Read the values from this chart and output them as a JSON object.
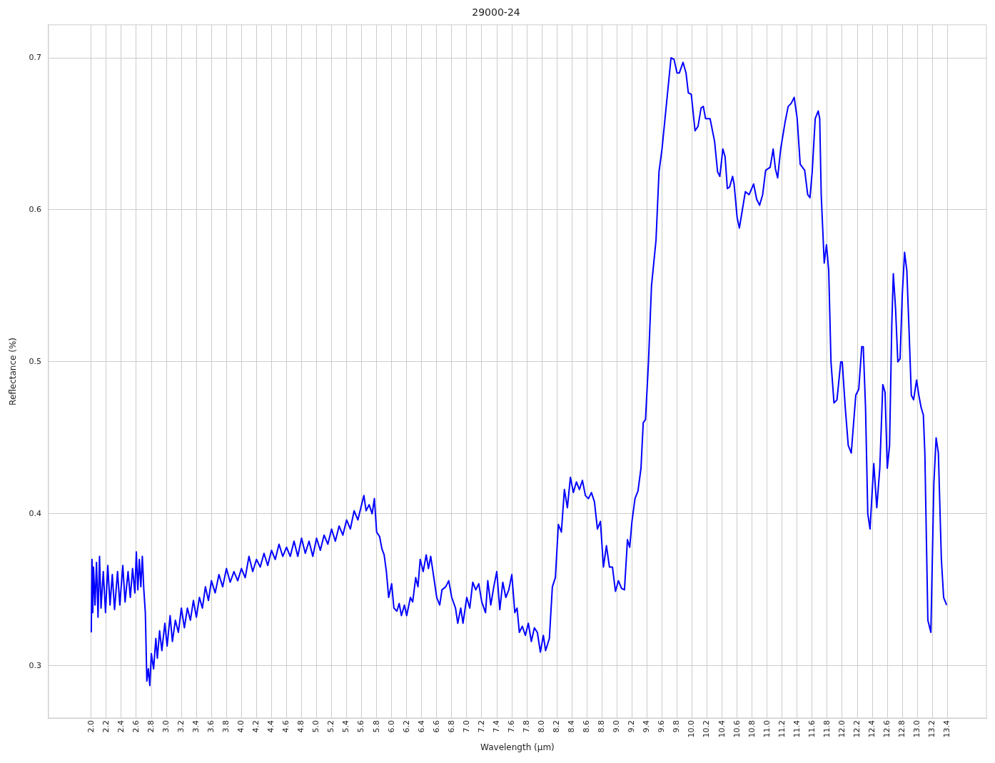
{
  "chart_data": {
    "type": "line",
    "title": "29000-24",
    "xlabel": "Wavelength (µm)",
    "ylabel": "Reflectance (%)",
    "xlim": [
      1.43,
      13.92
    ],
    "ylim": [
      0.2656,
      0.7217
    ],
    "xticks": [
      {
        "value": 2,
        "label": "2.0"
      },
      {
        "value": 2.2,
        "label": "2.2"
      },
      {
        "value": 2.4,
        "label": "2.4"
      },
      {
        "value": 2.6,
        "label": "2.6"
      },
      {
        "value": 2.8,
        "label": "2.8"
      },
      {
        "value": 3,
        "label": "3.0"
      },
      {
        "value": 3.2,
        "label": "3.2"
      },
      {
        "value": 3.4,
        "label": "3.4"
      },
      {
        "value": 3.6,
        "label": "3.6"
      },
      {
        "value": 3.8,
        "label": "3.8"
      },
      {
        "value": 4,
        "label": "4.0"
      },
      {
        "value": 4.2,
        "label": "4.2"
      },
      {
        "value": 4.4,
        "label": "4.4"
      },
      {
        "value": 4.6,
        "label": "4.6"
      },
      {
        "value": 4.8,
        "label": "4.8"
      },
      {
        "value": 5,
        "label": "5.0"
      },
      {
        "value": 5.2,
        "label": "5.2"
      },
      {
        "value": 5.4,
        "label": "5.4"
      },
      {
        "value": 5.6,
        "label": "5.6"
      },
      {
        "value": 5.8,
        "label": "5.8"
      },
      {
        "value": 6,
        "label": "6.0"
      },
      {
        "value": 6.2,
        "label": "6.2"
      },
      {
        "value": 6.4,
        "label": "6.4"
      },
      {
        "value": 6.6,
        "label": "6.6"
      },
      {
        "value": 6.8,
        "label": "6.8"
      },
      {
        "value": 7,
        "label": "7.0"
      },
      {
        "value": 7.2,
        "label": "7.2"
      },
      {
        "value": 7.4,
        "label": "7.4"
      },
      {
        "value": 7.6,
        "label": "7.6"
      },
      {
        "value": 7.8,
        "label": "7.8"
      },
      {
        "value": 8,
        "label": "8.0"
      },
      {
        "value": 8.2,
        "label": "8.2"
      },
      {
        "value": 8.4,
        "label": "8.4"
      },
      {
        "value": 8.6,
        "label": "8.6"
      },
      {
        "value": 8.8,
        "label": "8.8"
      },
      {
        "value": 9,
        "label": "9.0"
      },
      {
        "value": 9.2,
        "label": "9.2"
      },
      {
        "value": 9.4,
        "label": "9.4"
      },
      {
        "value": 9.6,
        "label": "9.6"
      },
      {
        "value": 9.8,
        "label": "9.8"
      },
      {
        "value": 10,
        "label": "10.0"
      },
      {
        "value": 10.2,
        "label": "10.2"
      },
      {
        "value": 10.4,
        "label": "10.4"
      },
      {
        "value": 10.6,
        "label": "10.6"
      },
      {
        "value": 10.8,
        "label": "10.8"
      },
      {
        "value": 11,
        "label": "11.0"
      },
      {
        "value": 11.2,
        "label": "11.2"
      },
      {
        "value": 11.4,
        "label": "11.4"
      },
      {
        "value": 11.6,
        "label": "11.6"
      },
      {
        "value": 11.8,
        "label": "11.8"
      },
      {
        "value": 12,
        "label": "12.0"
      },
      {
        "value": 12.2,
        "label": "12.2"
      },
      {
        "value": 12.4,
        "label": "12.4"
      },
      {
        "value": 12.6,
        "label": "12.6"
      },
      {
        "value": 12.8,
        "label": "12.8"
      },
      {
        "value": 13,
        "label": "13.0"
      },
      {
        "value": 13.2,
        "label": "13.2"
      },
      {
        "value": 13.4,
        "label": "13.4"
      }
    ],
    "yticks": [
      0.3,
      0.4,
      0.5,
      0.6,
      0.7
    ],
    "grid": true,
    "x": [
      2.0,
      2.01,
      2.02,
      2.03,
      2.05,
      2.07,
      2.09,
      2.11,
      2.13,
      2.16,
      2.19,
      2.22,
      2.25,
      2.28,
      2.31,
      2.35,
      2.38,
      2.42,
      2.45,
      2.49,
      2.52,
      2.55,
      2.58,
      2.6,
      2.62,
      2.64,
      2.66,
      2.68,
      2.7,
      2.72,
      2.74,
      2.76,
      2.78,
      2.8,
      2.83,
      2.86,
      2.88,
      2.91,
      2.94,
      2.98,
      3.01,
      3.05,
      3.08,
      3.12,
      3.16,
      3.2,
      3.24,
      3.28,
      3.32,
      3.36,
      3.4,
      3.44,
      3.48,
      3.52,
      3.56,
      3.6,
      3.65,
      3.7,
      3.75,
      3.8,
      3.85,
      3.9,
      3.95,
      4.0,
      4.05,
      4.1,
      4.15,
      4.2,
      4.25,
      4.3,
      4.35,
      4.4,
      4.45,
      4.5,
      4.55,
      4.6,
      4.65,
      4.7,
      4.75,
      4.8,
      4.85,
      4.9,
      4.95,
      5.0,
      5.05,
      5.1,
      5.15,
      5.2,
      5.25,
      5.3,
      5.35,
      5.4,
      5.45,
      5.5,
      5.55,
      5.6,
      5.63,
      5.66,
      5.7,
      5.74,
      5.77,
      5.8,
      5.84,
      5.87,
      5.9,
      5.93,
      5.96,
      6.0,
      6.03,
      6.07,
      6.1,
      6.13,
      6.17,
      6.2,
      6.25,
      6.28,
      6.32,
      6.35,
      6.38,
      6.42,
      6.46,
      6.49,
      6.52,
      6.55,
      6.6,
      6.64,
      6.67,
      6.72,
      6.76,
      6.8,
      6.85,
      6.88,
      6.92,
      6.95,
      7.0,
      7.04,
      7.08,
      7.12,
      7.16,
      7.2,
      7.25,
      7.28,
      7.32,
      7.36,
      7.4,
      7.44,
      7.48,
      7.52,
      7.56,
      7.6,
      7.64,
      7.67,
      7.7,
      7.74,
      7.78,
      7.82,
      7.86,
      7.9,
      7.94,
      7.98,
      8.02,
      8.05,
      8.1,
      8.14,
      8.18,
      8.22,
      8.26,
      8.3,
      8.34,
      8.38,
      8.42,
      8.46,
      8.5,
      8.54,
      8.58,
      8.62,
      8.66,
      8.7,
      8.74,
      8.78,
      8.82,
      8.86,
      8.9,
      8.94,
      8.98,
      9.02,
      9.06,
      9.1,
      9.14,
      9.17,
      9.2,
      9.24,
      9.28,
      9.32,
      9.35,
      9.38,
      9.42,
      9.46,
      9.52,
      9.56,
      9.6,
      9.66,
      9.72,
      9.76,
      9.8,
      9.83,
      9.88,
      9.92,
      9.95,
      9.99,
      10.04,
      10.08,
      10.12,
      10.15,
      10.18,
      10.24,
      10.3,
      10.34,
      10.37,
      10.41,
      10.44,
      10.47,
      10.5,
      10.54,
      10.56,
      10.6,
      10.63,
      10.67,
      10.71,
      10.76,
      10.82,
      10.86,
      10.9,
      10.94,
      10.98,
      11.04,
      11.08,
      11.11,
      11.14,
      11.18,
      11.24,
      11.28,
      11.32,
      11.36,
      11.4,
      11.44,
      11.5,
      11.54,
      11.57,
      11.6,
      11.64,
      11.68,
      11.7,
      11.72,
      11.76,
      11.79,
      11.82,
      11.85,
      11.89,
      11.93,
      11.98,
      12.0,
      12.04,
      12.08,
      12.12,
      12.18,
      12.22,
      12.26,
      12.28,
      12.31,
      12.34,
      12.37,
      12.42,
      12.46,
      12.5,
      12.54,
      12.57,
      12.6,
      12.63,
      12.66,
      12.68,
      12.71,
      12.74,
      12.77,
      12.8,
      12.83,
      12.86,
      12.89,
      12.92,
      12.95,
      12.99,
      13.02,
      13.05,
      13.08,
      13.1,
      13.14,
      13.18,
      13.22,
      13.25,
      13.28,
      13.32,
      13.35,
      13.39
    ],
    "series": [
      {
        "color": "#0000ff",
        "values": [
          0.322,
          0.37,
          0.335,
          0.365,
          0.34,
          0.368,
          0.332,
          0.372,
          0.338,
          0.362,
          0.335,
          0.366,
          0.34,
          0.36,
          0.337,
          0.362,
          0.34,
          0.366,
          0.342,
          0.362,
          0.345,
          0.364,
          0.348,
          0.375,
          0.35,
          0.37,
          0.352,
          0.372,
          0.35,
          0.335,
          0.29,
          0.298,
          0.287,
          0.308,
          0.298,
          0.318,
          0.305,
          0.323,
          0.31,
          0.328,
          0.313,
          0.333,
          0.316,
          0.33,
          0.322,
          0.338,
          0.325,
          0.338,
          0.33,
          0.343,
          0.332,
          0.345,
          0.338,
          0.352,
          0.343,
          0.356,
          0.348,
          0.36,
          0.352,
          0.364,
          0.355,
          0.362,
          0.356,
          0.364,
          0.358,
          0.372,
          0.362,
          0.37,
          0.365,
          0.374,
          0.366,
          0.376,
          0.37,
          0.38,
          0.372,
          0.378,
          0.372,
          0.382,
          0.372,
          0.384,
          0.374,
          0.382,
          0.372,
          0.384,
          0.376,
          0.386,
          0.38,
          0.39,
          0.382,
          0.392,
          0.386,
          0.396,
          0.39,
          0.402,
          0.396,
          0.406,
          0.412,
          0.402,
          0.406,
          0.4,
          0.41,
          0.388,
          0.385,
          0.377,
          0.373,
          0.362,
          0.345,
          0.354,
          0.338,
          0.336,
          0.341,
          0.333,
          0.34,
          0.333,
          0.345,
          0.342,
          0.358,
          0.352,
          0.37,
          0.362,
          0.373,
          0.364,
          0.372,
          0.362,
          0.345,
          0.34,
          0.35,
          0.352,
          0.356,
          0.345,
          0.338,
          0.328,
          0.338,
          0.328,
          0.345,
          0.338,
          0.355,
          0.35,
          0.354,
          0.342,
          0.335,
          0.356,
          0.34,
          0.352,
          0.362,
          0.337,
          0.355,
          0.345,
          0.35,
          0.36,
          0.335,
          0.338,
          0.322,
          0.326,
          0.32,
          0.328,
          0.316,
          0.325,
          0.322,
          0.309,
          0.32,
          0.31,
          0.318,
          0.352,
          0.358,
          0.393,
          0.388,
          0.416,
          0.404,
          0.424,
          0.414,
          0.421,
          0.416,
          0.422,
          0.412,
          0.41,
          0.414,
          0.408,
          0.39,
          0.395,
          0.365,
          0.379,
          0.365,
          0.365,
          0.349,
          0.356,
          0.351,
          0.35,
          0.383,
          0.378,
          0.395,
          0.41,
          0.415,
          0.43,
          0.46,
          0.462,
          0.5,
          0.55,
          0.58,
          0.625,
          0.64,
          0.67,
          0.7,
          0.699,
          0.69,
          0.69,
          0.697,
          0.69,
          0.677,
          0.676,
          0.652,
          0.655,
          0.667,
          0.668,
          0.66,
          0.66,
          0.645,
          0.625,
          0.622,
          0.64,
          0.635,
          0.614,
          0.615,
          0.622,
          0.617,
          0.595,
          0.588,
          0.6,
          0.612,
          0.61,
          0.617,
          0.607,
          0.603,
          0.61,
          0.626,
          0.628,
          0.64,
          0.627,
          0.621,
          0.64,
          0.658,
          0.668,
          0.67,
          0.674,
          0.66,
          0.63,
          0.626,
          0.61,
          0.608,
          0.625,
          0.66,
          0.665,
          0.66,
          0.61,
          0.565,
          0.577,
          0.56,
          0.5,
          0.473,
          0.475,
          0.5,
          0.5,
          0.47,
          0.445,
          0.44,
          0.478,
          0.482,
          0.51,
          0.51,
          0.47,
          0.4,
          0.39,
          0.433,
          0.404,
          0.43,
          0.485,
          0.48,
          0.43,
          0.445,
          0.525,
          0.558,
          0.535,
          0.5,
          0.502,
          0.545,
          0.572,
          0.56,
          0.52,
          0.478,
          0.475,
          0.488,
          0.478,
          0.47,
          0.465,
          0.44,
          0.33,
          0.322,
          0.42,
          0.45,
          0.44,
          0.37,
          0.345,
          0.34
        ]
      }
    ]
  }
}
